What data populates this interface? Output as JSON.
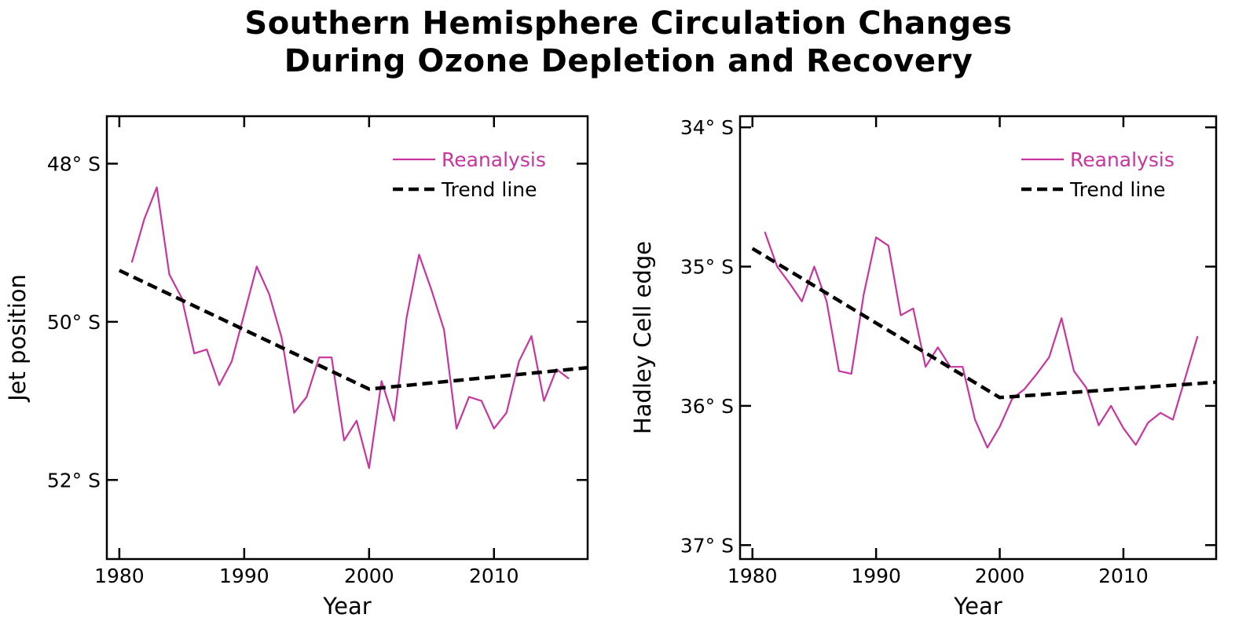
{
  "title": {
    "line1": "Southern Hemisphere Circulation Changes",
    "line2": "During Ozone Depletion and Recovery"
  },
  "colors": {
    "reanalysis": "#c8359e",
    "trend": "#000000",
    "axis": "#000000"
  },
  "chart_data": [
    {
      "type": "line",
      "xlabel": "Year",
      "ylabel": "Jet position",
      "ylabel_units": "latitude, degrees south (axis inverted: 48° S at top)",
      "xlim": [
        1979,
        2017.5
      ],
      "ylim": [
        47.4,
        53.0
      ],
      "y_inverted": true,
      "xticks": [
        1980,
        1990,
        2000,
        2010
      ],
      "xtick_labels": [
        "1980",
        "1990",
        "2000",
        "2010"
      ],
      "yticks": [
        48,
        50,
        52
      ],
      "ytick_labels": [
        "48° S",
        "50° S",
        "52° S"
      ],
      "legend": {
        "position": "top-right",
        "entries": [
          "Reanalysis",
          "Trend line"
        ]
      },
      "grid": false,
      "series": [
        {
          "name": "Reanalysis",
          "style": "solid",
          "x": [
            1981,
            1982,
            1983,
            1984,
            1985,
            1986,
            1987,
            1988,
            1989,
            1990,
            1991,
            1992,
            1993,
            1994,
            1995,
            1996,
            1997,
            1998,
            1999,
            2000,
            2001,
            2002,
            2003,
            2004,
            2005,
            2006,
            2007,
            2008,
            2009,
            2010,
            2011,
            2012,
            2013,
            2014,
            2015,
            2016
          ],
          "y": [
            49.25,
            48.7,
            48.3,
            49.4,
            49.7,
            50.4,
            50.35,
            50.8,
            50.5,
            49.9,
            49.3,
            49.65,
            50.2,
            51.15,
            50.95,
            50.45,
            50.45,
            51.5,
            51.25,
            51.85,
            50.75,
            51.25,
            49.95,
            49.15,
            49.6,
            50.1,
            51.35,
            50.95,
            51.0,
            51.35,
            51.15,
            50.5,
            50.18,
            51.0,
            50.6,
            50.72
          ]
        },
        {
          "name": "Trend line",
          "style": "dashed",
          "x": [
            1980,
            2000,
            2017.5
          ],
          "y": [
            49.35,
            50.85,
            50.58
          ]
        }
      ]
    },
    {
      "type": "line",
      "xlabel": "Year",
      "ylabel": "Hadley Cell edge",
      "ylabel_units": "latitude, degrees south (axis inverted: 34° S at top)",
      "xlim": [
        1979,
        2017.5
      ],
      "ylim": [
        33.92,
        37.1
      ],
      "y_inverted": true,
      "xticks": [
        1980,
        1990,
        2000,
        2010
      ],
      "xtick_labels": [
        "1980",
        "1990",
        "2000",
        "2010"
      ],
      "yticks": [
        34,
        35,
        36,
        37
      ],
      "ytick_labels": [
        "34° S",
        "35° S",
        "36° S",
        "37° S"
      ],
      "legend": {
        "position": "top-right",
        "entries": [
          "Reanalysis",
          "Trend line"
        ]
      },
      "grid": false,
      "series": [
        {
          "name": "Reanalysis",
          "style": "solid",
          "x": [
            1981,
            1982,
            1983,
            1984,
            1985,
            1986,
            1987,
            1988,
            1989,
            1990,
            1991,
            1992,
            1993,
            1994,
            1995,
            1996,
            1997,
            1998,
            1999,
            2000,
            2001,
            2002,
            2003,
            2004,
            2005,
            2006,
            2007,
            2008,
            2009,
            2010,
            2011,
            2012,
            2013,
            2014,
            2015,
            2016
          ],
          "y": [
            34.75,
            35.0,
            35.12,
            35.25,
            35.0,
            35.25,
            35.75,
            35.77,
            35.2,
            34.79,
            34.85,
            35.35,
            35.3,
            35.72,
            35.58,
            35.72,
            35.72,
            36.1,
            36.3,
            36.15,
            35.95,
            35.88,
            35.77,
            35.65,
            35.37,
            35.75,
            35.87,
            36.14,
            36.0,
            36.16,
            36.28,
            36.12,
            36.05,
            36.1,
            35.8,
            35.5
          ]
        },
        {
          "name": "Trend line",
          "style": "dashed",
          "x": [
            1980,
            2000,
            2017.5
          ],
          "y": [
            34.87,
            35.94,
            35.83
          ]
        }
      ]
    }
  ]
}
